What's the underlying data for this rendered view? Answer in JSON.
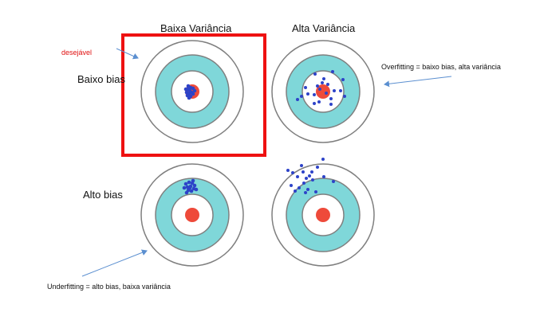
{
  "columns": {
    "low_variance": "Baixa Variância",
    "high_variance": "Alta Variância"
  },
  "rows": {
    "low_bias": "Baixo bias",
    "high_bias": "Alto bias"
  },
  "annotations": {
    "desirable": "desejável",
    "overfitting": "Overfitting = baixo bias, alta variância",
    "underfitting": "Underfitting = alto bias, baixa variância"
  },
  "colors": {
    "ring": "#7f7f7f",
    "band": "#7fd7d9",
    "bullseye": "#ee4a3a",
    "points": "#2d43c8",
    "highlight": "#ee1111",
    "arrow": "#5b8fd0"
  },
  "targets": [
    {
      "id": "low-bias-low-variance",
      "highlighted": true
    },
    {
      "id": "low-bias-high-variance",
      "highlighted": false
    },
    {
      "id": "high-bias-low-variance",
      "highlighted": false
    },
    {
      "id": "high-bias-high-variance",
      "highlighted": false
    }
  ]
}
